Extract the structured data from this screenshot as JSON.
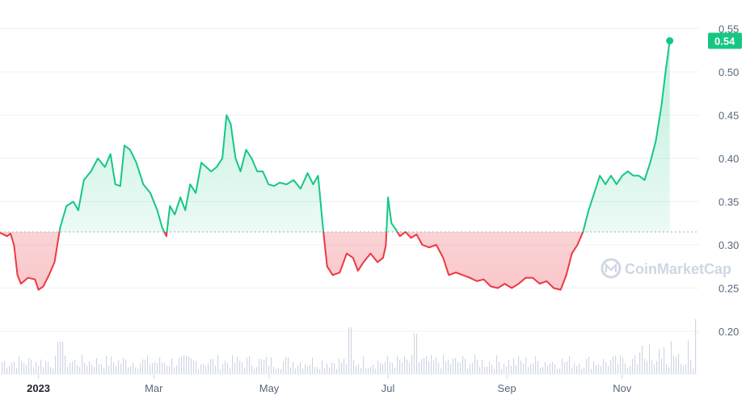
{
  "chart_data": {
    "type": "area",
    "baseline_value": 0.315,
    "ylim": [
      0.15,
      0.55
    ],
    "y_ticks": [
      "0.55",
      "0.50",
      "0.45",
      "0.40",
      "0.35",
      "0.30",
      "0.25",
      "0.20"
    ],
    "x_ticks": [
      {
        "label": "2023",
        "t": 0.055,
        "bold": true
      },
      {
        "label": "Mar",
        "t": 0.22,
        "bold": false
      },
      {
        "label": "May",
        "t": 0.385,
        "bold": false
      },
      {
        "label": "Jul",
        "t": 0.555,
        "bold": false
      },
      {
        "label": "Sep",
        "t": 0.725,
        "bold": false
      },
      {
        "label": "Nov",
        "t": 0.89,
        "bold": false
      }
    ],
    "last_price": "0.54",
    "watermark": "CoinMarketCap",
    "colors": {
      "up": "#16c784",
      "down": "#ea3943",
      "grid": "#eff2f5",
      "baseline": "#a6b0c3",
      "volume": "#cfd6e4",
      "label_bg": "#16c784"
    },
    "series": [
      {
        "t": 0.0,
        "v": 0.314
      },
      {
        "t": 0.01,
        "v": 0.31
      },
      {
        "t": 0.015,
        "v": 0.313
      },
      {
        "t": 0.02,
        "v": 0.3
      },
      {
        "t": 0.025,
        "v": 0.265
      },
      {
        "t": 0.03,
        "v": 0.255
      },
      {
        "t": 0.04,
        "v": 0.262
      },
      {
        "t": 0.05,
        "v": 0.26
      },
      {
        "t": 0.055,
        "v": 0.248
      },
      {
        "t": 0.062,
        "v": 0.252
      },
      {
        "t": 0.07,
        "v": 0.265
      },
      {
        "t": 0.078,
        "v": 0.28
      },
      {
        "t": 0.086,
        "v": 0.32
      },
      {
        "t": 0.095,
        "v": 0.345
      },
      {
        "t": 0.105,
        "v": 0.35
      },
      {
        "t": 0.112,
        "v": 0.34
      },
      {
        "t": 0.12,
        "v": 0.375
      },
      {
        "t": 0.13,
        "v": 0.385
      },
      {
        "t": 0.14,
        "v": 0.4
      },
      {
        "t": 0.15,
        "v": 0.39
      },
      {
        "t": 0.158,
        "v": 0.405
      },
      {
        "t": 0.165,
        "v": 0.37
      },
      {
        "t": 0.172,
        "v": 0.368
      },
      {
        "t": 0.178,
        "v": 0.415
      },
      {
        "t": 0.186,
        "v": 0.41
      },
      {
        "t": 0.195,
        "v": 0.395
      },
      {
        "t": 0.205,
        "v": 0.37
      },
      {
        "t": 0.215,
        "v": 0.36
      },
      {
        "t": 0.225,
        "v": 0.34
      },
      {
        "t": 0.232,
        "v": 0.32
      },
      {
        "t": 0.238,
        "v": 0.31
      },
      {
        "t": 0.243,
        "v": 0.345
      },
      {
        "t": 0.25,
        "v": 0.335
      },
      {
        "t": 0.258,
        "v": 0.355
      },
      {
        "t": 0.265,
        "v": 0.34
      },
      {
        "t": 0.272,
        "v": 0.37
      },
      {
        "t": 0.28,
        "v": 0.36
      },
      {
        "t": 0.288,
        "v": 0.395
      },
      {
        "t": 0.295,
        "v": 0.39
      },
      {
        "t": 0.302,
        "v": 0.385
      },
      {
        "t": 0.31,
        "v": 0.39
      },
      {
        "t": 0.318,
        "v": 0.4
      },
      {
        "t": 0.324,
        "v": 0.45
      },
      {
        "t": 0.33,
        "v": 0.44
      },
      {
        "t": 0.337,
        "v": 0.4
      },
      {
        "t": 0.344,
        "v": 0.385
      },
      {
        "t": 0.352,
        "v": 0.41
      },
      {
        "t": 0.36,
        "v": 0.4
      },
      {
        "t": 0.368,
        "v": 0.385
      },
      {
        "t": 0.376,
        "v": 0.385
      },
      {
        "t": 0.384,
        "v": 0.37
      },
      {
        "t": 0.392,
        "v": 0.368
      },
      {
        "t": 0.4,
        "v": 0.372
      },
      {
        "t": 0.41,
        "v": 0.37
      },
      {
        "t": 0.42,
        "v": 0.375
      },
      {
        "t": 0.43,
        "v": 0.365
      },
      {
        "t": 0.44,
        "v": 0.383
      },
      {
        "t": 0.448,
        "v": 0.37
      },
      {
        "t": 0.455,
        "v": 0.38
      },
      {
        "t": 0.462,
        "v": 0.32
      },
      {
        "t": 0.468,
        "v": 0.275
      },
      {
        "t": 0.476,
        "v": 0.265
      },
      {
        "t": 0.486,
        "v": 0.268
      },
      {
        "t": 0.496,
        "v": 0.29
      },
      {
        "t": 0.505,
        "v": 0.285
      },
      {
        "t": 0.512,
        "v": 0.27
      },
      {
        "t": 0.52,
        "v": 0.28
      },
      {
        "t": 0.53,
        "v": 0.29
      },
      {
        "t": 0.54,
        "v": 0.28
      },
      {
        "t": 0.548,
        "v": 0.285
      },
      {
        "t": 0.552,
        "v": 0.3
      },
      {
        "t": 0.555,
        "v": 0.355
      },
      {
        "t": 0.56,
        "v": 0.325
      },
      {
        "t": 0.566,
        "v": 0.318
      },
      {
        "t": 0.572,
        "v": 0.31
      },
      {
        "t": 0.58,
        "v": 0.315
      },
      {
        "t": 0.588,
        "v": 0.308
      },
      {
        "t": 0.596,
        "v": 0.312
      },
      {
        "t": 0.604,
        "v": 0.3
      },
      {
        "t": 0.614,
        "v": 0.297
      },
      {
        "t": 0.624,
        "v": 0.3
      },
      {
        "t": 0.634,
        "v": 0.285
      },
      {
        "t": 0.642,
        "v": 0.265
      },
      {
        "t": 0.652,
        "v": 0.268
      },
      {
        "t": 0.662,
        "v": 0.265
      },
      {
        "t": 0.672,
        "v": 0.262
      },
      {
        "t": 0.682,
        "v": 0.258
      },
      {
        "t": 0.692,
        "v": 0.26
      },
      {
        "t": 0.702,
        "v": 0.252
      },
      {
        "t": 0.712,
        "v": 0.25
      },
      {
        "t": 0.722,
        "v": 0.255
      },
      {
        "t": 0.732,
        "v": 0.25
      },
      {
        "t": 0.742,
        "v": 0.255
      },
      {
        "t": 0.752,
        "v": 0.262
      },
      {
        "t": 0.762,
        "v": 0.262
      },
      {
        "t": 0.772,
        "v": 0.255
      },
      {
        "t": 0.782,
        "v": 0.258
      },
      {
        "t": 0.792,
        "v": 0.25
      },
      {
        "t": 0.802,
        "v": 0.248
      },
      {
        "t": 0.81,
        "v": 0.265
      },
      {
        "t": 0.818,
        "v": 0.29
      },
      {
        "t": 0.826,
        "v": 0.3
      },
      {
        "t": 0.834,
        "v": 0.315
      },
      {
        "t": 0.842,
        "v": 0.34
      },
      {
        "t": 0.85,
        "v": 0.36
      },
      {
        "t": 0.858,
        "v": 0.38
      },
      {
        "t": 0.866,
        "v": 0.37
      },
      {
        "t": 0.874,
        "v": 0.38
      },
      {
        "t": 0.882,
        "v": 0.37
      },
      {
        "t": 0.89,
        "v": 0.38
      },
      {
        "t": 0.898,
        "v": 0.385
      },
      {
        "t": 0.906,
        "v": 0.38
      },
      {
        "t": 0.914,
        "v": 0.38
      },
      {
        "t": 0.922,
        "v": 0.375
      },
      {
        "t": 0.93,
        "v": 0.395
      },
      {
        "t": 0.938,
        "v": 0.42
      },
      {
        "t": 0.946,
        "v": 0.46
      },
      {
        "t": 0.952,
        "v": 0.5
      },
      {
        "t": 0.958,
        "v": 0.536
      }
    ]
  }
}
